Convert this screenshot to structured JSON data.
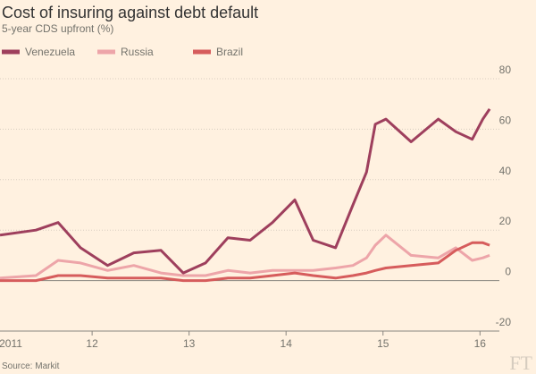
{
  "chart_data": {
    "type": "line",
    "title": "Cost of insuring against debt default",
    "subtitle": "5-year CDS upfront (%)",
    "source": "Source: Markit",
    "logo": "FT",
    "x": [
      2011.05,
      2011.42,
      2011.65,
      2011.88,
      2012.16,
      2012.43,
      2012.71,
      2012.94,
      2013.17,
      2013.4,
      2013.63,
      2013.86,
      2014.09,
      2014.28,
      2014.51,
      2014.69,
      2014.83,
      2014.92,
      2015.03,
      2015.29,
      2015.57,
      2015.75,
      2015.92,
      2016.03,
      2016.1
    ],
    "series": [
      {
        "name": "Venezuela",
        "color": "#9e3f5d",
        "values": [
          18,
          20,
          23,
          13,
          6,
          11,
          12,
          3,
          7,
          17,
          16,
          23,
          32,
          16,
          13,
          30,
          43,
          62,
          64,
          55,
          64,
          59,
          56,
          64,
          68
        ]
      },
      {
        "name": "Russia",
        "color": "#eda5a9",
        "values": [
          1,
          2,
          8,
          7,
          4,
          6,
          3,
          2,
          2,
          4,
          3,
          4,
          4,
          4,
          5,
          6,
          9,
          14,
          18,
          10,
          9,
          13,
          8,
          9,
          10
        ]
      },
      {
        "name": "Brazil",
        "color": "#d65c5c",
        "values": [
          0,
          0,
          2,
          2,
          1,
          1,
          1,
          0,
          0,
          1,
          1,
          2,
          3,
          2,
          1,
          2,
          3,
          4,
          5,
          6,
          7,
          12,
          15,
          15,
          14
        ]
      }
    ],
    "xlim": [
      2011.05,
      2016.2
    ],
    "xticks": [
      {
        "value": 2011,
        "label": "2011"
      },
      {
        "value": 2012,
        "label": "12"
      },
      {
        "value": 2013,
        "label": "13"
      },
      {
        "value": 2014,
        "label": "14"
      },
      {
        "value": 2015,
        "label": "15"
      },
      {
        "value": 2016,
        "label": "16"
      }
    ],
    "ylim": [
      -20,
      80
    ],
    "yticks": [
      -20,
      0,
      20,
      40,
      60,
      80
    ],
    "grid": true
  }
}
